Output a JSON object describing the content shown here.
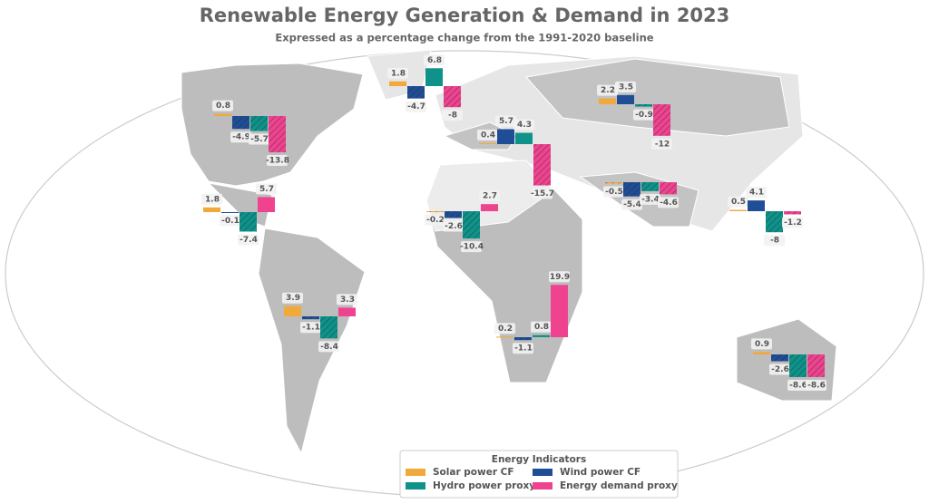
{
  "chart_data": {
    "type": "map-bars",
    "title": "Renewable Energy Generation & Demand in 2023",
    "subtitle": "Expressed as a percentage change from the 1991-2020 baseline",
    "legend_title": "Energy Indicators",
    "categories": [
      null,
      null,
      null,
      null,
      null,
      null,
      null,
      null,
      null,
      null,
      null
    ],
    "series": [
      {
        "name": "Solar power CF",
        "color": "#f2a93b",
        "values": [
          0.8,
          1.8,
          3.9,
          1.8,
          0.4,
          2.2,
          -0.2,
          0.2,
          -0.5,
          0.5,
          0.9
        ]
      },
      {
        "name": "Wind power CF",
        "color": "#1f4e96",
        "values": [
          -4.9,
          -0.1,
          -1.1,
          -4.7,
          5.7,
          3.5,
          -2.6,
          -1.1,
          -5.4,
          4.1,
          -2.6
        ]
      },
      {
        "name": "Hydro power proxy",
        "color": "#0e928a",
        "values": [
          -5.7,
          -7.4,
          -8.4,
          6.8,
          4.3,
          -0.9,
          -10.4,
          0.8,
          -3.4,
          -8.0,
          -8.6
        ]
      },
      {
        "name": "Energy demand proxy",
        "color": "#ef4390",
        "values": [
          -13.8,
          5.7,
          3.3,
          -8.0,
          -15.7,
          -12.0,
          2.7,
          19.9,
          -4.6,
          -1.2,
          -8.6
        ]
      }
    ]
  }
}
